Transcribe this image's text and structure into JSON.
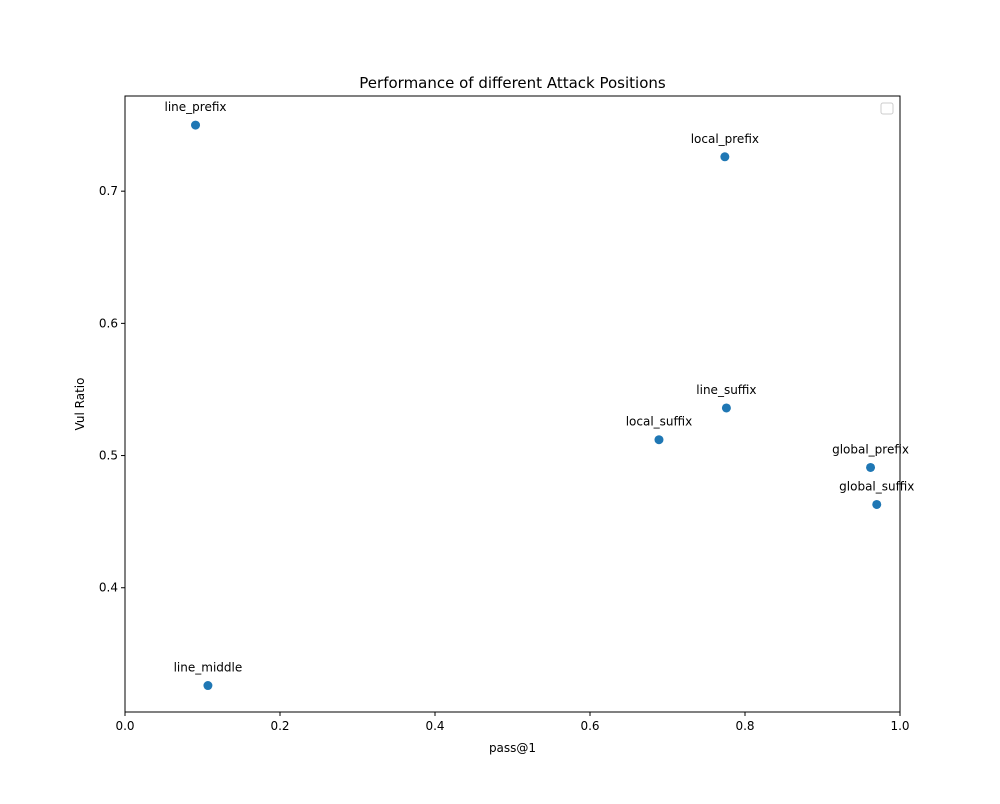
{
  "chart_data": {
    "type": "scatter",
    "title": "Performance of different Attack Positions",
    "xlabel": "pass@1",
    "ylabel": "Vul Ratio",
    "xlim": [
      0.0,
      1.0
    ],
    "ylim": [
      0.306,
      0.772
    ],
    "xticks": [
      0.0,
      0.2,
      0.4,
      0.6,
      0.8,
      1.0
    ],
    "xtick_labels": [
      "0.0",
      "0.2",
      "0.4",
      "0.6",
      "0.8",
      "1.0"
    ],
    "yticks": [
      0.4,
      0.5,
      0.6,
      0.7
    ],
    "ytick_labels": [
      "0.4",
      "0.5",
      "0.6",
      "0.7"
    ],
    "grid": false,
    "legend": {
      "placement": "top-right",
      "entries": []
    },
    "marker_color": "#1f77b4",
    "points": [
      {
        "label": "line_prefix",
        "x": 0.091,
        "y": 0.75
      },
      {
        "label": "local_prefix",
        "x": 0.774,
        "y": 0.726
      },
      {
        "label": "line_suffix",
        "x": 0.776,
        "y": 0.536
      },
      {
        "label": "local_suffix",
        "x": 0.689,
        "y": 0.512
      },
      {
        "label": "global_prefix",
        "x": 0.962,
        "y": 0.491
      },
      {
        "label": "global_suffix",
        "x": 0.97,
        "y": 0.463
      },
      {
        "label": "line_middle",
        "x": 0.107,
        "y": 0.326
      }
    ]
  }
}
